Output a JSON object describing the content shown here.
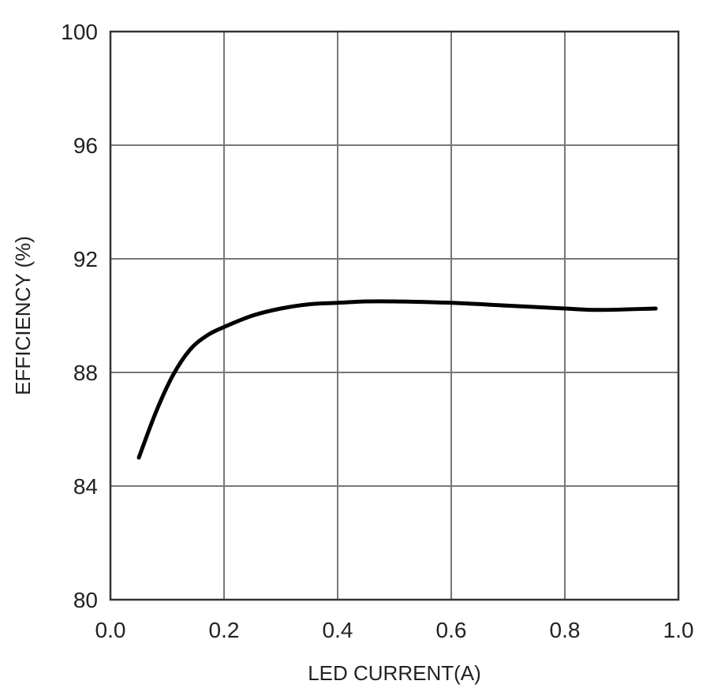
{
  "chart_data": {
    "type": "line",
    "title": "",
    "xlabel": "LED CURRENT(A)",
    "ylabel": "EFFICIENCY (%)",
    "xlim": [
      0.0,
      1.0
    ],
    "ylim": [
      80,
      100
    ],
    "x_ticks": [
      "0.0",
      "0.2",
      "0.4",
      "0.6",
      "0.8",
      "1.0"
    ],
    "y_ticks": [
      "80",
      "84",
      "88",
      "92",
      "96",
      "100"
    ],
    "grid": true,
    "legend": "none",
    "colors": {
      "line": "#000000",
      "grid": "#777777"
    },
    "series": [
      {
        "x": [
          0.05,
          0.08,
          0.11,
          0.14,
          0.17,
          0.2,
          0.25,
          0.3,
          0.35,
          0.4,
          0.45,
          0.5,
          0.6,
          0.7,
          0.8,
          0.86,
          0.96
        ],
        "y": [
          85.0,
          86.6,
          87.9,
          88.8,
          89.3,
          89.6,
          90.0,
          90.25,
          90.4,
          90.45,
          90.5,
          90.5,
          90.45,
          90.35,
          90.25,
          90.2,
          90.25
        ]
      }
    ]
  }
}
